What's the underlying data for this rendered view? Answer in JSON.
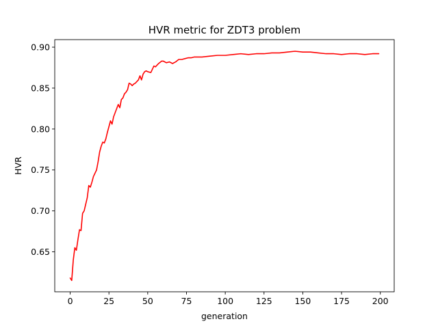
{
  "chart_data": {
    "type": "line",
    "title": "HVR metric for ZDT3 problem",
    "xlabel": "generation",
    "ylabel": "HVR",
    "xlim": [
      -9.95,
      208.95
    ],
    "ylim": [
      0.6012,
      0.9092
    ],
    "xticks": [
      0,
      25,
      50,
      75,
      100,
      125,
      150,
      175,
      200
    ],
    "yticks": [
      0.65,
      0.7,
      0.75,
      0.8,
      0.85,
      0.9
    ],
    "ytick_labels": [
      "0.65",
      "0.70",
      "0.75",
      "0.80",
      "0.85",
      "0.90"
    ],
    "grid": false,
    "legend": "none",
    "series": [
      {
        "color": "#ff0000",
        "x": [
          0,
          1,
          2,
          3,
          4,
          5,
          6,
          7,
          8,
          9,
          10,
          11,
          12,
          13,
          14,
          15,
          16,
          17,
          18,
          19,
          20,
          21,
          22,
          23,
          24,
          25,
          26,
          27,
          28,
          29,
          30,
          31,
          32,
          33,
          34,
          35,
          36,
          37,
          38,
          39,
          40,
          41,
          42,
          43,
          44,
          45,
          46,
          47,
          48,
          49,
          50,
          52,
          54,
          55,
          57,
          59,
          60,
          62,
          64,
          66,
          68,
          70,
          72,
          74,
          76,
          78,
          80,
          85,
          90,
          95,
          100,
          105,
          110,
          115,
          120,
          125,
          130,
          135,
          140,
          145,
          150,
          155,
          160,
          165,
          170,
          175,
          180,
          185,
          190,
          195,
          199
        ],
        "y": [
          0.618,
          0.615,
          0.64,
          0.655,
          0.652,
          0.665,
          0.677,
          0.676,
          0.697,
          0.7,
          0.708,
          0.716,
          0.731,
          0.729,
          0.735,
          0.742,
          0.746,
          0.75,
          0.76,
          0.772,
          0.779,
          0.784,
          0.783,
          0.788,
          0.796,
          0.803,
          0.81,
          0.806,
          0.815,
          0.82,
          0.825,
          0.83,
          0.826,
          0.836,
          0.838,
          0.843,
          0.845,
          0.848,
          0.856,
          0.855,
          0.853,
          0.855,
          0.856,
          0.858,
          0.86,
          0.865,
          0.86,
          0.867,
          0.87,
          0.871,
          0.87,
          0.869,
          0.877,
          0.876,
          0.88,
          0.883,
          0.883,
          0.881,
          0.882,
          0.88,
          0.882,
          0.885,
          0.885,
          0.886,
          0.887,
          0.887,
          0.888,
          0.888,
          0.889,
          0.89,
          0.89,
          0.891,
          0.892,
          0.891,
          0.892,
          0.892,
          0.893,
          0.893,
          0.894,
          0.895,
          0.894,
          0.894,
          0.893,
          0.892,
          0.892,
          0.891,
          0.892,
          0.892,
          0.891,
          0.892,
          0.892
        ]
      }
    ]
  }
}
